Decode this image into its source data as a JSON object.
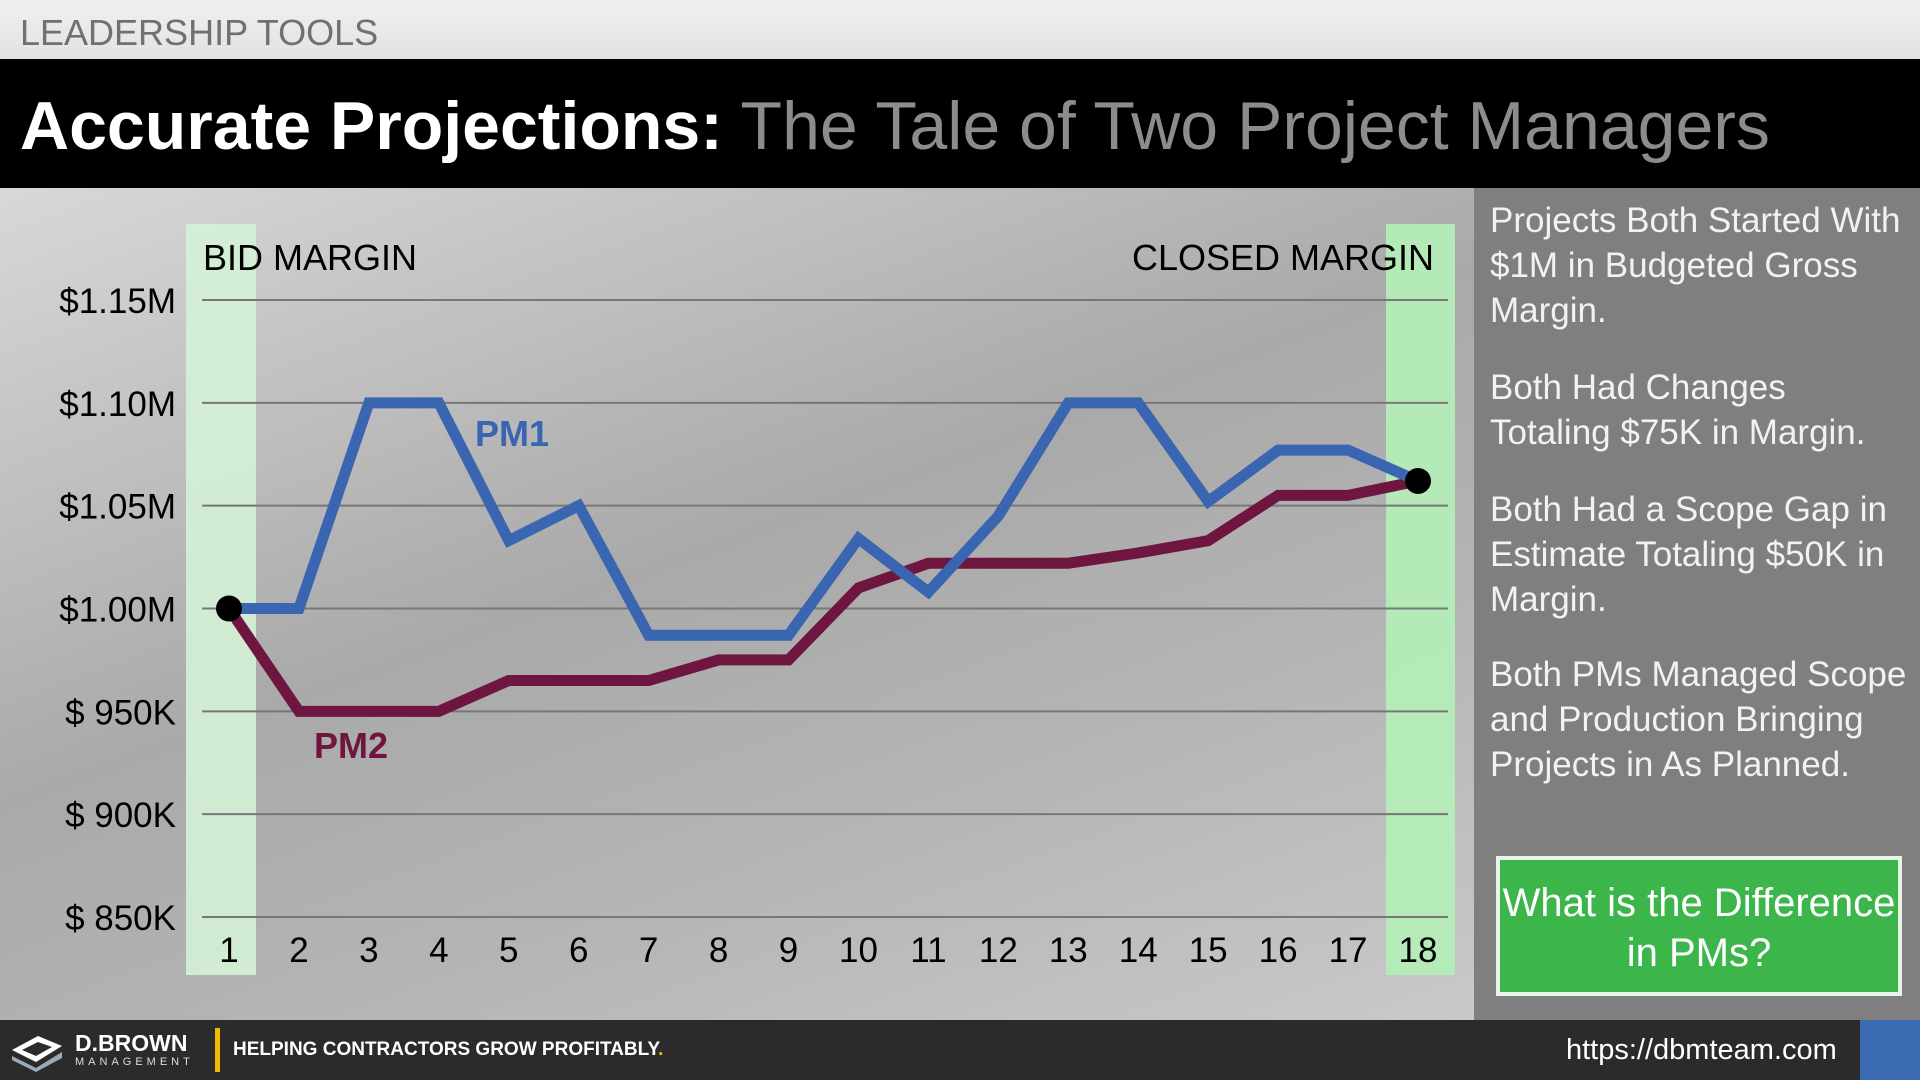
{
  "header": {
    "section": "LEADERSHIP TOOLS",
    "title_bold": "Accurate Projections",
    "title_sep": ":",
    "title_rest": " The Tale of Two Project Managers"
  },
  "chart_data": {
    "type": "line",
    "title": "",
    "band_labels": {
      "left": "BID MARGIN",
      "right": "CLOSED MARGIN"
    },
    "x": [
      1,
      2,
      3,
      4,
      5,
      6,
      7,
      8,
      9,
      10,
      11,
      12,
      13,
      14,
      15,
      16,
      17,
      18
    ],
    "ylim": [
      850000,
      1150000
    ],
    "yticks": [
      1150000,
      1100000,
      1050000,
      1000000,
      950000,
      900000,
      850000
    ],
    "ytick_labels": [
      "$1.15M",
      "$1.10M",
      "$1.05M",
      "$1.00M",
      "$ 950K",
      "$ 900K",
      "$ 850K"
    ],
    "grid": true,
    "series": [
      {
        "name": "PM1",
        "color": "#3a65b0",
        "values": [
          1000000,
          1000000,
          1100000,
          1100000,
          1033000,
          1050000,
          987000,
          987000,
          987000,
          1034000,
          1008000,
          1045000,
          1100000,
          1100000,
          1052000,
          1077000,
          1077000,
          1062000
        ]
      },
      {
        "name": "PM2",
        "color": "#6e1640",
        "values": [
          1000000,
          950000,
          950000,
          950000,
          965000,
          965000,
          965000,
          975000,
          975000,
          1010000,
          1022000,
          1022000,
          1022000,
          1027000,
          1033000,
          1055000,
          1055000,
          1062000
        ]
      }
    ],
    "highlight_color": "#b4ecb8"
  },
  "side": {
    "paragraphs": [
      "Projects Both Started With $1M in Budgeted Gross Margin.",
      "Both Had Changes Totaling $75K in Margin.",
      "Both Had a Scope Gap in Estimate Totaling $50K in Margin.",
      "Both PMs Managed Scope and Production Bringing Projects in As Planned."
    ],
    "cta": "What is the Difference in PMs?"
  },
  "footer": {
    "brand": "D.BROWN",
    "brand_sub": "MANAGEMENT",
    "slogan": "HELPING CONTRACTORS GROW PROFITABLY",
    "slogan_dot": ".",
    "url": "https://dbmteam.com"
  }
}
